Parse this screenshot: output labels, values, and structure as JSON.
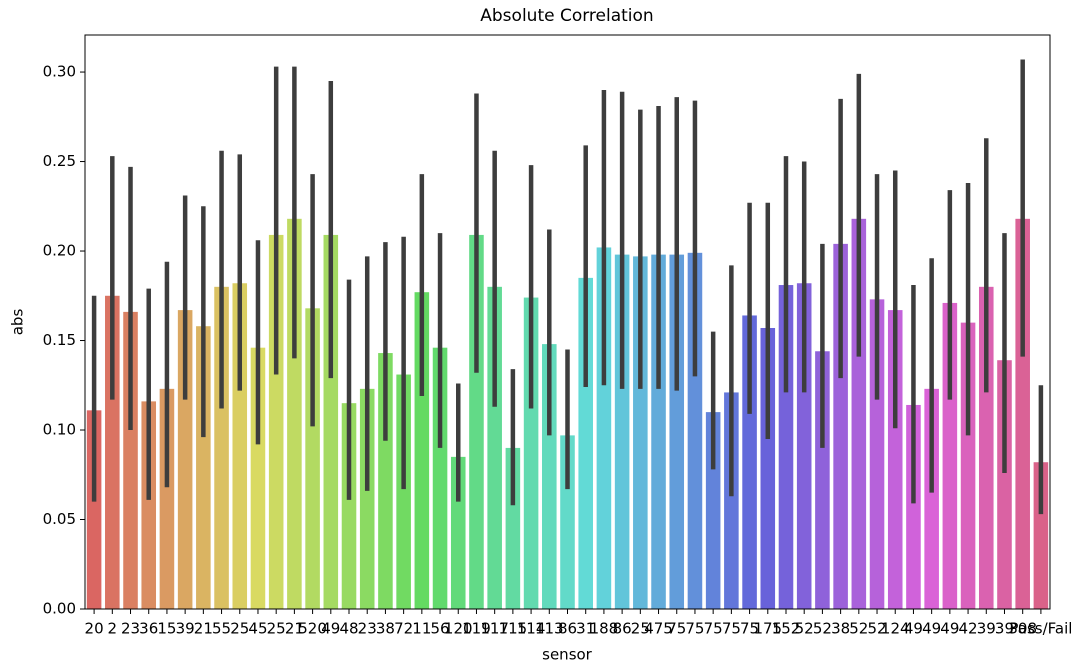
{
  "chart_data": {
    "type": "bar",
    "title": "Absolute Correlation",
    "x_label": "sensor",
    "y_label": "abs",
    "categories": [
      "20",
      "2",
      "23",
      "36",
      "15",
      "39",
      "21",
      "55",
      "25",
      "45",
      "25",
      "21",
      "520",
      "49",
      "48",
      "23",
      "38",
      "72",
      "11",
      "56",
      "120",
      "119",
      "117",
      "115",
      "114",
      "113",
      "86",
      "31",
      "188",
      "86",
      "25",
      "475",
      "75",
      "75",
      "75",
      "75",
      "75",
      "175",
      "152",
      "52",
      "52",
      "38",
      "52",
      "52",
      "124",
      "49",
      "49",
      "49",
      "42",
      "39",
      "39",
      "308",
      "Pass/Fail"
    ],
    "values": [
      0.111,
      0.175,
      0.166,
      0.116,
      0.123,
      0.167,
      0.158,
      0.18,
      0.182,
      0.146,
      0.209,
      0.218,
      0.168,
      0.209,
      0.115,
      0.123,
      0.143,
      0.131,
      0.177,
      0.146,
      0.085,
      0.209,
      0.18,
      0.09,
      0.174,
      0.148,
      0.097,
      0.185,
      0.202,
      0.198,
      0.197,
      0.198,
      0.198,
      0.199,
      0.11,
      0.121,
      0.164,
      0.157,
      0.181,
      0.182,
      0.144,
      0.204,
      0.218,
      0.173,
      0.167,
      0.114,
      0.123,
      0.171,
      0.16,
      0.18,
      0.139,
      0.218,
      0.082
    ],
    "ci_low": [
      0.06,
      0.117,
      0.1,
      0.061,
      0.068,
      0.117,
      0.096,
      0.112,
      0.122,
      0.092,
      0.131,
      0.14,
      0.102,
      0.129,
      0.061,
      0.066,
      0.094,
      0.067,
      0.119,
      0.09,
      0.06,
      0.132,
      0.113,
      0.058,
      0.112,
      0.097,
      0.067,
      0.124,
      0.125,
      0.123,
      0.123,
      0.123,
      0.122,
      0.13,
      0.078,
      0.063,
      0.109,
      0.095,
      0.121,
      0.121,
      0.09,
      0.129,
      0.141,
      0.117,
      0.101,
      0.059,
      0.065,
      0.117,
      0.097,
      0.121,
      0.076,
      0.141,
      0.053
    ],
    "ci_high": [
      0.175,
      0.253,
      0.247,
      0.179,
      0.194,
      0.231,
      0.225,
      0.256,
      0.254,
      0.206,
      0.303,
      0.303,
      0.243,
      0.295,
      0.184,
      0.197,
      0.205,
      0.208,
      0.243,
      0.21,
      0.126,
      0.288,
      0.256,
      0.134,
      0.248,
      0.212,
      0.145,
      0.259,
      0.29,
      0.289,
      0.279,
      0.281,
      0.286,
      0.284,
      0.155,
      0.192,
      0.227,
      0.227,
      0.253,
      0.25,
      0.204,
      0.285,
      0.299,
      0.243,
      0.245,
      0.181,
      0.196,
      0.234,
      0.238,
      0.263,
      0.21,
      0.307,
      0.125
    ],
    "palette": "husl",
    "errorbar_color": "#3d3d3d",
    "ylim": [
      0,
      0.3207
    ],
    "yticks": [
      {
        "value": 0,
        "label": "0.00"
      },
      {
        "value": 0.05,
        "label": "0.05"
      },
      {
        "value": 0.1,
        "label": "0.10"
      },
      {
        "value": 0.15,
        "label": "0.15"
      },
      {
        "value": 0.2,
        "label": "0.20"
      },
      {
        "value": 0.25,
        "label": "0.25"
      },
      {
        "value": 0.3,
        "label": "0.30"
      }
    ]
  }
}
